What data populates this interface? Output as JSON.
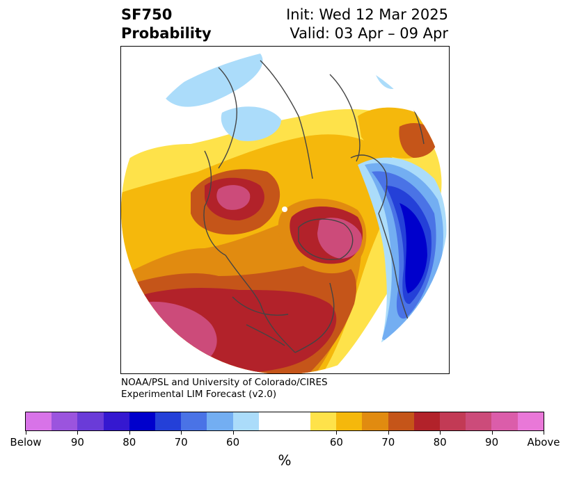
{
  "title": {
    "left_line1": "SF750",
    "left_line2": "Probability",
    "right_line1": "Init: Wed 12 Mar 2025",
    "right_line2": "Valid: 03 Apr – 09 Apr"
  },
  "credit": {
    "line1": "NOAA/PSL and University of Colorado/CIRES",
    "line2": "Experimental LIM Forecast (v2.0)"
  },
  "colorbar": {
    "unit": "%",
    "colors": [
      "#d873e8",
      "#9b54de",
      "#6a3bd8",
      "#3518d0",
      "#0000cc",
      "#2440d8",
      "#4a73e6",
      "#73aef2",
      "#abdcfa",
      "#ffffff",
      "#ffffff",
      "#fee24a",
      "#f5b80c",
      "#e18b10",
      "#c55519",
      "#b2222a",
      "#c23a55",
      "#cc4b7a",
      "#db5daa",
      "#e978d8"
    ],
    "tick_labels": [
      "Below",
      "90",
      "80",
      "70",
      "60",
      "60",
      "70",
      "80",
      "90",
      "Above"
    ]
  },
  "map": {
    "colors": {
      "yellow": "#fee24a",
      "gold": "#f5b80c",
      "orange": "#e18b10",
      "dark_orange": "#c55519",
      "red": "#b2222a",
      "rose": "#c23a55",
      "pink": "#cc4b7a",
      "light_blue": "#abdcfa",
      "sky_blue": "#73aef2",
      "mid_blue": "#4a73e6",
      "blue": "#2440d8",
      "deep_blue": "#0000cc",
      "coast": "#444444"
    }
  }
}
